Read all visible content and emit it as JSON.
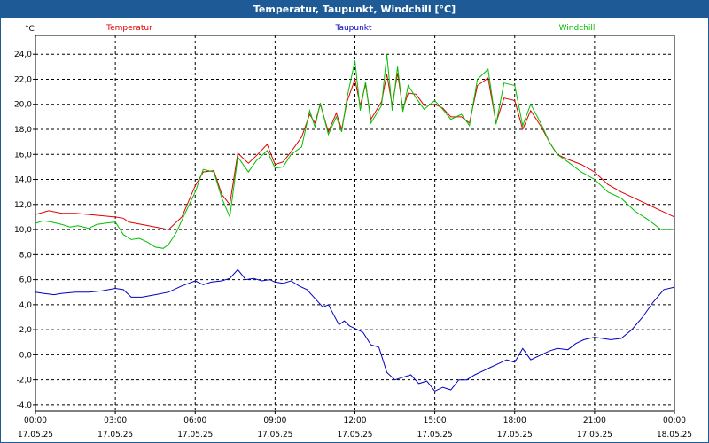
{
  "window": {
    "title": "Temperatur, Taupunkt, Windchill [°C]"
  },
  "chart_data": {
    "type": "line",
    "title": "Temperatur, Taupunkt, Windchill [°C]",
    "ylabel": "°C",
    "ylim": [
      -4.5,
      25.5
    ],
    "yticks": [
      24,
      22,
      20,
      18,
      16,
      14,
      12,
      10,
      8,
      6,
      4,
      2,
      0,
      -2,
      -4
    ],
    "ytick_labels": [
      "24,0",
      "22,0",
      "20,0",
      "18,0",
      "16,0",
      "14,0",
      "12,0",
      "10,0",
      "8,0",
      "6,0",
      "4,0",
      "2,0",
      "0,0",
      "-2,0",
      "-4,0"
    ],
    "x_hours": [
      0,
      24
    ],
    "xticks": [
      0,
      3,
      6,
      9,
      12,
      15,
      18,
      21,
      24
    ],
    "xtick_times": [
      "00:00",
      "03:00",
      "06:00",
      "09:00",
      "12:00",
      "15:00",
      "18:00",
      "21:00",
      "00:00"
    ],
    "xtick_dates": [
      "17.05.25",
      "17.05.25",
      "17.05.25",
      "17.05.25",
      "17.05.25",
      "17.05.25",
      "17.05.25",
      "17.05.25",
      "18.05.25"
    ],
    "grid": true,
    "legend_position": "top",
    "series": [
      {
        "name": "Temperatur",
        "color": "#e00000",
        "x": [
          0,
          0.5,
          1,
          1.5,
          2,
          2.5,
          3,
          3.3,
          3.5,
          4,
          4.5,
          5,
          5.5,
          6,
          6.3,
          6.7,
          7,
          7.3,
          7.6,
          8,
          8.3,
          8.7,
          9,
          9.3,
          9.6,
          10,
          10.3,
          10.5,
          10.7,
          11,
          11.3,
          11.5,
          11.7,
          12,
          12.2,
          12.4,
          12.6,
          13,
          13.2,
          13.4,
          13.6,
          13.8,
          14,
          14.3,
          14.6,
          15,
          15.3,
          15.6,
          16,
          16.3,
          16.6,
          17,
          17.3,
          17.6,
          18,
          18.3,
          18.6,
          19,
          19.3,
          19.6,
          20,
          20.5,
          21,
          21.5,
          22,
          22.5,
          23,
          23.5,
          24
        ],
        "y": [
          11.2,
          11.5,
          11.3,
          11.3,
          11.2,
          11.1,
          11.0,
          10.9,
          10.6,
          10.4,
          10.2,
          10.0,
          11.0,
          13.5,
          14.6,
          14.7,
          12.8,
          12.0,
          16.1,
          15.3,
          15.9,
          16.8,
          15.2,
          15.4,
          16.2,
          17.4,
          19.2,
          18.5,
          20.0,
          17.8,
          19.3,
          18.0,
          20.2,
          22.0,
          19.9,
          21.6,
          18.8,
          20.2,
          22.4,
          19.9,
          22.5,
          19.6,
          20.9,
          20.8,
          19.9,
          20.0,
          19.7,
          19.0,
          19.0,
          18.5,
          21.5,
          22.1,
          18.5,
          20.5,
          20.3,
          18.0,
          19.5,
          18.2,
          17.0,
          16.0,
          15.6,
          15.2,
          14.6,
          13.6,
          13.0,
          12.5,
          12.0,
          11.5,
          11.0
        ]
      },
      {
        "name": "Taupunkt",
        "color": "#0000c0",
        "x": [
          0,
          0.3,
          0.7,
          1,
          1.5,
          2,
          2.5,
          3,
          3.3,
          3.6,
          4,
          4.5,
          5,
          5.5,
          6,
          6.3,
          6.6,
          7,
          7.3,
          7.6,
          7.9,
          8.2,
          8.5,
          8.8,
          9,
          9.3,
          9.6,
          9.9,
          10.2,
          10.5,
          10.8,
          11,
          11.2,
          11.4,
          11.6,
          11.8,
          12,
          12.3,
          12.6,
          12.9,
          13.2,
          13.5,
          13.8,
          14.1,
          14.4,
          14.7,
          15,
          15.3,
          15.6,
          15.9,
          16.2,
          16.5,
          16.8,
          17.1,
          17.4,
          17.7,
          18,
          18.3,
          18.6,
          19,
          19.3,
          19.6,
          20,
          20.3,
          20.6,
          21,
          21.3,
          21.6,
          22,
          22.4,
          22.8,
          23.2,
          23.6,
          24
        ],
        "y": [
          5.0,
          4.9,
          4.8,
          4.9,
          5.0,
          5.0,
          5.1,
          5.3,
          5.2,
          4.6,
          4.6,
          4.8,
          5.0,
          5.5,
          5.9,
          5.6,
          5.8,
          5.9,
          6.1,
          6.8,
          6.0,
          6.1,
          5.9,
          6.0,
          5.8,
          5.7,
          5.9,
          5.5,
          5.2,
          4.5,
          3.8,
          4.0,
          3.2,
          2.4,
          2.7,
          2.3,
          2.1,
          1.8,
          0.8,
          0.6,
          -1.4,
          -2.0,
          -1.8,
          -1.6,
          -2.3,
          -2.1,
          -2.9,
          -2.6,
          -2.8,
          -2.0,
          -2.0,
          -1.6,
          -1.3,
          -1.0,
          -0.7,
          -0.4,
          -0.6,
          0.5,
          -0.4,
          0.0,
          0.3,
          0.5,
          0.4,
          0.9,
          1.2,
          1.4,
          1.3,
          1.2,
          1.3,
          2.0,
          3.0,
          4.2,
          5.2,
          5.4
        ]
      },
      {
        "name": "Windchill",
        "color": "#00c000",
        "x": [
          0,
          0.3,
          0.6,
          1,
          1.3,
          1.6,
          2,
          2.3,
          2.6,
          3,
          3.3,
          3.6,
          3.9,
          4.2,
          4.5,
          4.8,
          5,
          5.3,
          5.6,
          6,
          6.3,
          6.7,
          7,
          7.3,
          7.6,
          8,
          8.3,
          8.7,
          9,
          9.3,
          9.6,
          10,
          10.3,
          10.5,
          10.7,
          11,
          11.3,
          11.5,
          11.7,
          12,
          12.2,
          12.4,
          12.6,
          13,
          13.2,
          13.4,
          13.6,
          13.8,
          14,
          14.3,
          14.6,
          15,
          15.3,
          15.6,
          16,
          16.3,
          16.6,
          17,
          17.3,
          17.6,
          18,
          18.3,
          18.6,
          19,
          19.3,
          19.6,
          20,
          20.5,
          21,
          21.5,
          22,
          22.5,
          23,
          23.5,
          24
        ],
        "y": [
          10.5,
          10.7,
          10.6,
          10.4,
          10.2,
          10.3,
          10.1,
          10.4,
          10.5,
          10.6,
          9.6,
          9.2,
          9.3,
          9.0,
          8.6,
          8.5,
          8.8,
          9.8,
          11.2,
          13.0,
          14.8,
          14.6,
          12.5,
          11.0,
          15.8,
          14.6,
          15.5,
          16.3,
          14.9,
          15.0,
          16.0,
          16.6,
          19.5,
          18.2,
          20.1,
          17.6,
          19.0,
          17.8,
          20.5,
          23.5,
          19.5,
          21.8,
          18.5,
          19.9,
          24.0,
          19.5,
          23.0,
          19.4,
          21.5,
          20.5,
          19.6,
          20.3,
          19.6,
          18.8,
          19.2,
          18.3,
          22.0,
          22.8,
          18.4,
          21.7,
          21.5,
          18.3,
          20.0,
          18.4,
          17.0,
          16.0,
          15.4,
          14.6,
          14.0,
          13.0,
          12.5,
          11.5,
          10.8,
          10.0,
          10.0
        ]
      }
    ]
  }
}
